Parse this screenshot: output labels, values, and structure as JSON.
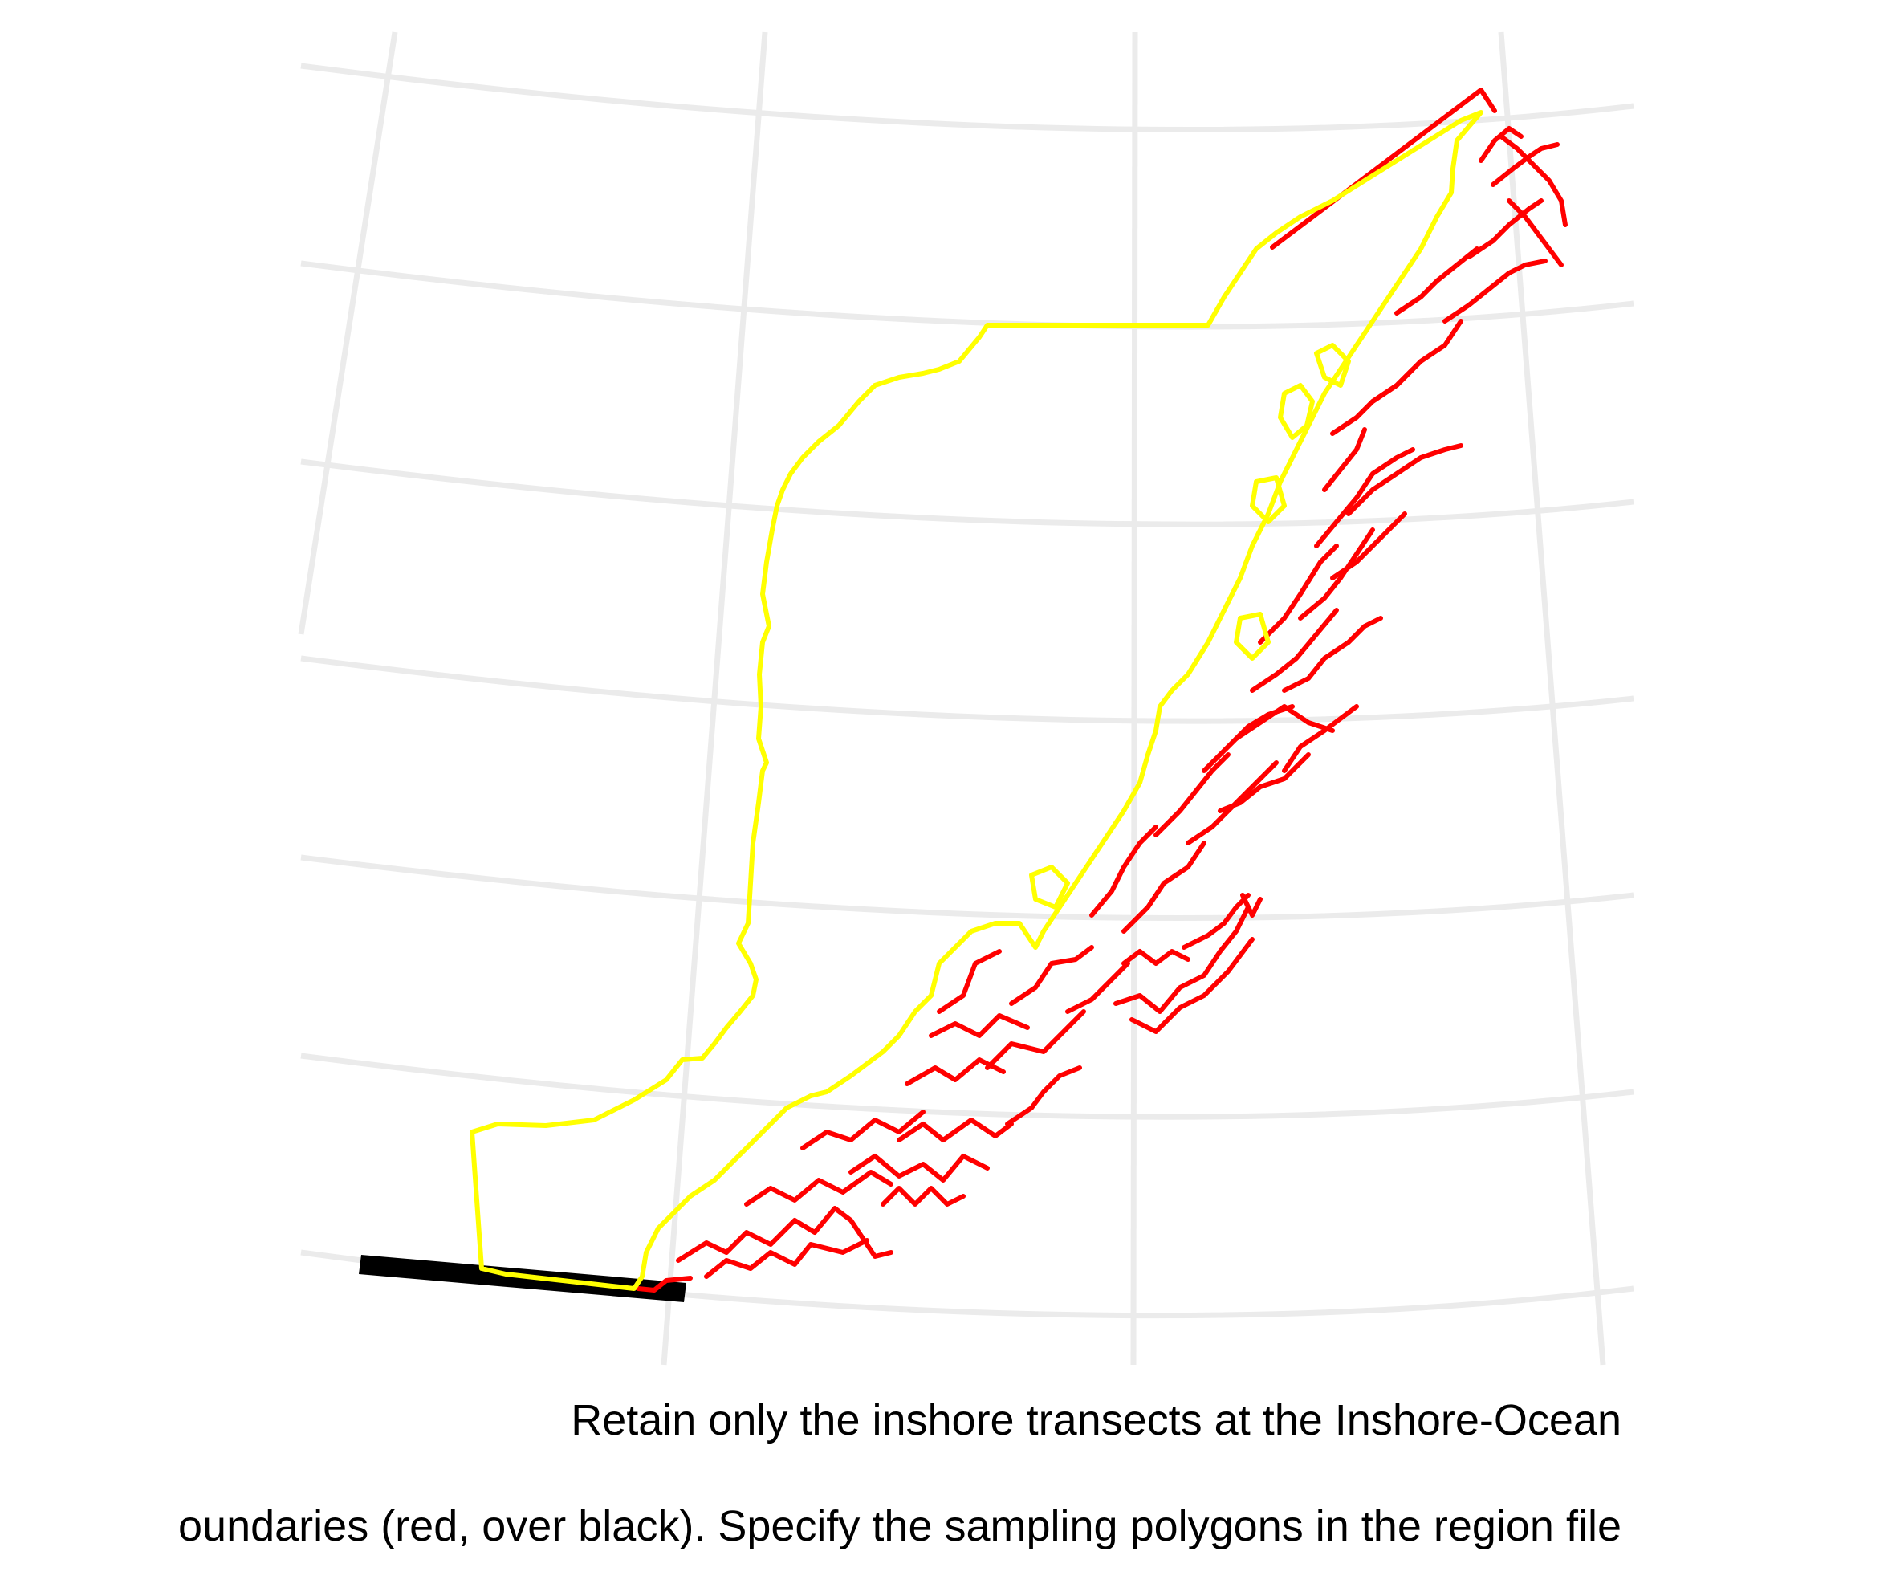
{
  "caption": {
    "line1": "Retain only the inshore transects at the Inshore-Ocean",
    "line2": "oundaries (red, over black). Specify the sampling polygons in the region file"
  },
  "colors": {
    "graticule": "#ebebeb",
    "inshore_transects": "#ff0000",
    "region_boundary": "#ffff00",
    "boundary_underlay": "#000000",
    "background": "#ffffff"
  },
  "map": {
    "graticule": true,
    "axis_labels": false,
    "legend": false
  }
}
